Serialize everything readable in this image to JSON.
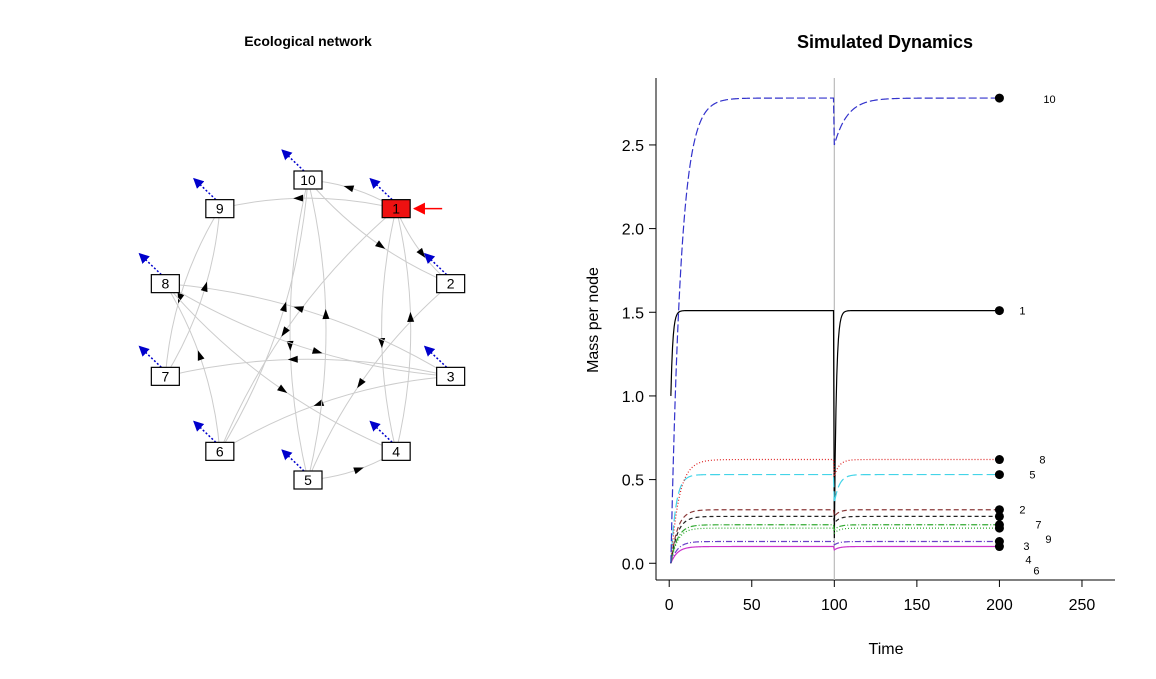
{
  "network": {
    "title": "Ecological network",
    "colors": {
      "node_fill": "#ffffff",
      "highlight_fill": "#ee1111",
      "edge": "#cccccc",
      "export": "#0000cc",
      "input": "#ff0000"
    },
    "nodes": [
      {
        "id": "1",
        "highlight": true
      },
      {
        "id": "2"
      },
      {
        "id": "3"
      },
      {
        "id": "4"
      },
      {
        "id": "5"
      },
      {
        "id": "6"
      },
      {
        "id": "7"
      },
      {
        "id": "8"
      },
      {
        "id": "9"
      },
      {
        "id": "10"
      }
    ],
    "edges": [
      [
        "1",
        "10"
      ],
      [
        "1",
        "9"
      ],
      [
        "1",
        "2"
      ],
      [
        "1",
        "4"
      ],
      [
        "1",
        "6"
      ],
      [
        "10",
        "5"
      ],
      [
        "10",
        "2"
      ],
      [
        "9",
        "7"
      ],
      [
        "8",
        "3"
      ],
      [
        "8",
        "4"
      ],
      [
        "3",
        "8"
      ],
      [
        "3",
        "7"
      ],
      [
        "3",
        "6"
      ],
      [
        "2",
        "5"
      ],
      [
        "7",
        "9"
      ],
      [
        "6",
        "8"
      ],
      [
        "5",
        "4"
      ],
      [
        "5",
        "10"
      ],
      [
        "6",
        "10"
      ],
      [
        "4",
        "1"
      ]
    ],
    "exports_from": [
      "10",
      "1",
      "9",
      "8",
      "2",
      "7",
      "3",
      "6",
      "5",
      "4"
    ],
    "input_to": [
      "1"
    ]
  },
  "chart_data": {
    "type": "line",
    "title": "Simulated Dynamics",
    "xlabel": "Time",
    "ylabel": "Mass per node",
    "xlim": [
      -8,
      270
    ],
    "ylim": [
      -0.1,
      2.9
    ],
    "xticks": [
      0,
      50,
      100,
      150,
      200,
      250
    ],
    "yticks": [
      0.0,
      0.5,
      1.0,
      1.5,
      2.0,
      2.5
    ],
    "vline_x": 100,
    "grid": false,
    "series": [
      {
        "name": "1",
        "color": "#000000",
        "dash": "",
        "start": 1.0,
        "steady": 1.51,
        "tau": 1.2,
        "dip": 0.15,
        "rtau": 1.2
      },
      {
        "name": "2",
        "color": "#8b3a3a",
        "dash": "5 3",
        "start": 0.0,
        "steady": 0.32,
        "tau": 4,
        "dip": 0.28,
        "rtau": 3
      },
      {
        "name": "3",
        "color": "#2eaa2e",
        "dash": "1 2",
        "start": 0.0,
        "steady": 0.21,
        "tau": 4,
        "dip": 0.18,
        "rtau": 3
      },
      {
        "name": "4",
        "color": "#6a3fc8",
        "dash": "6 2 1 2",
        "start": 0.0,
        "steady": 0.13,
        "tau": 4,
        "dip": 0.11,
        "rtau": 3
      },
      {
        "name": "5",
        "color": "#44d4e8",
        "dash": "10 4",
        "start": 0.0,
        "steady": 0.53,
        "tau": 3,
        "dip": 0.36,
        "rtau": 3
      },
      {
        "name": "6",
        "color": "#cc33cc",
        "dash": "",
        "start": 0.0,
        "steady": 0.1,
        "tau": 4,
        "dip": 0.08,
        "rtau": 3
      },
      {
        "name": "7",
        "color": "#222222",
        "dash": "4 3",
        "start": 0.0,
        "steady": 0.28,
        "tau": 4,
        "dip": 0.24,
        "rtau": 3
      },
      {
        "name": "8",
        "color": "#dd2222",
        "dash": "1 2",
        "start": 0.0,
        "steady": 0.62,
        "tau": 5,
        "dip": 0.52,
        "rtau": 3
      },
      {
        "name": "9",
        "color": "#33aa33",
        "dash": "6 2 1 2",
        "start": 0.0,
        "steady": 0.23,
        "tau": 4,
        "dip": 0.2,
        "rtau": 3
      },
      {
        "name": "10",
        "color": "#3333cc",
        "dash": "8 3",
        "start": 0.0,
        "steady": 2.78,
        "tau": 6,
        "dip": 2.5,
        "rtau": 8
      }
    ]
  }
}
